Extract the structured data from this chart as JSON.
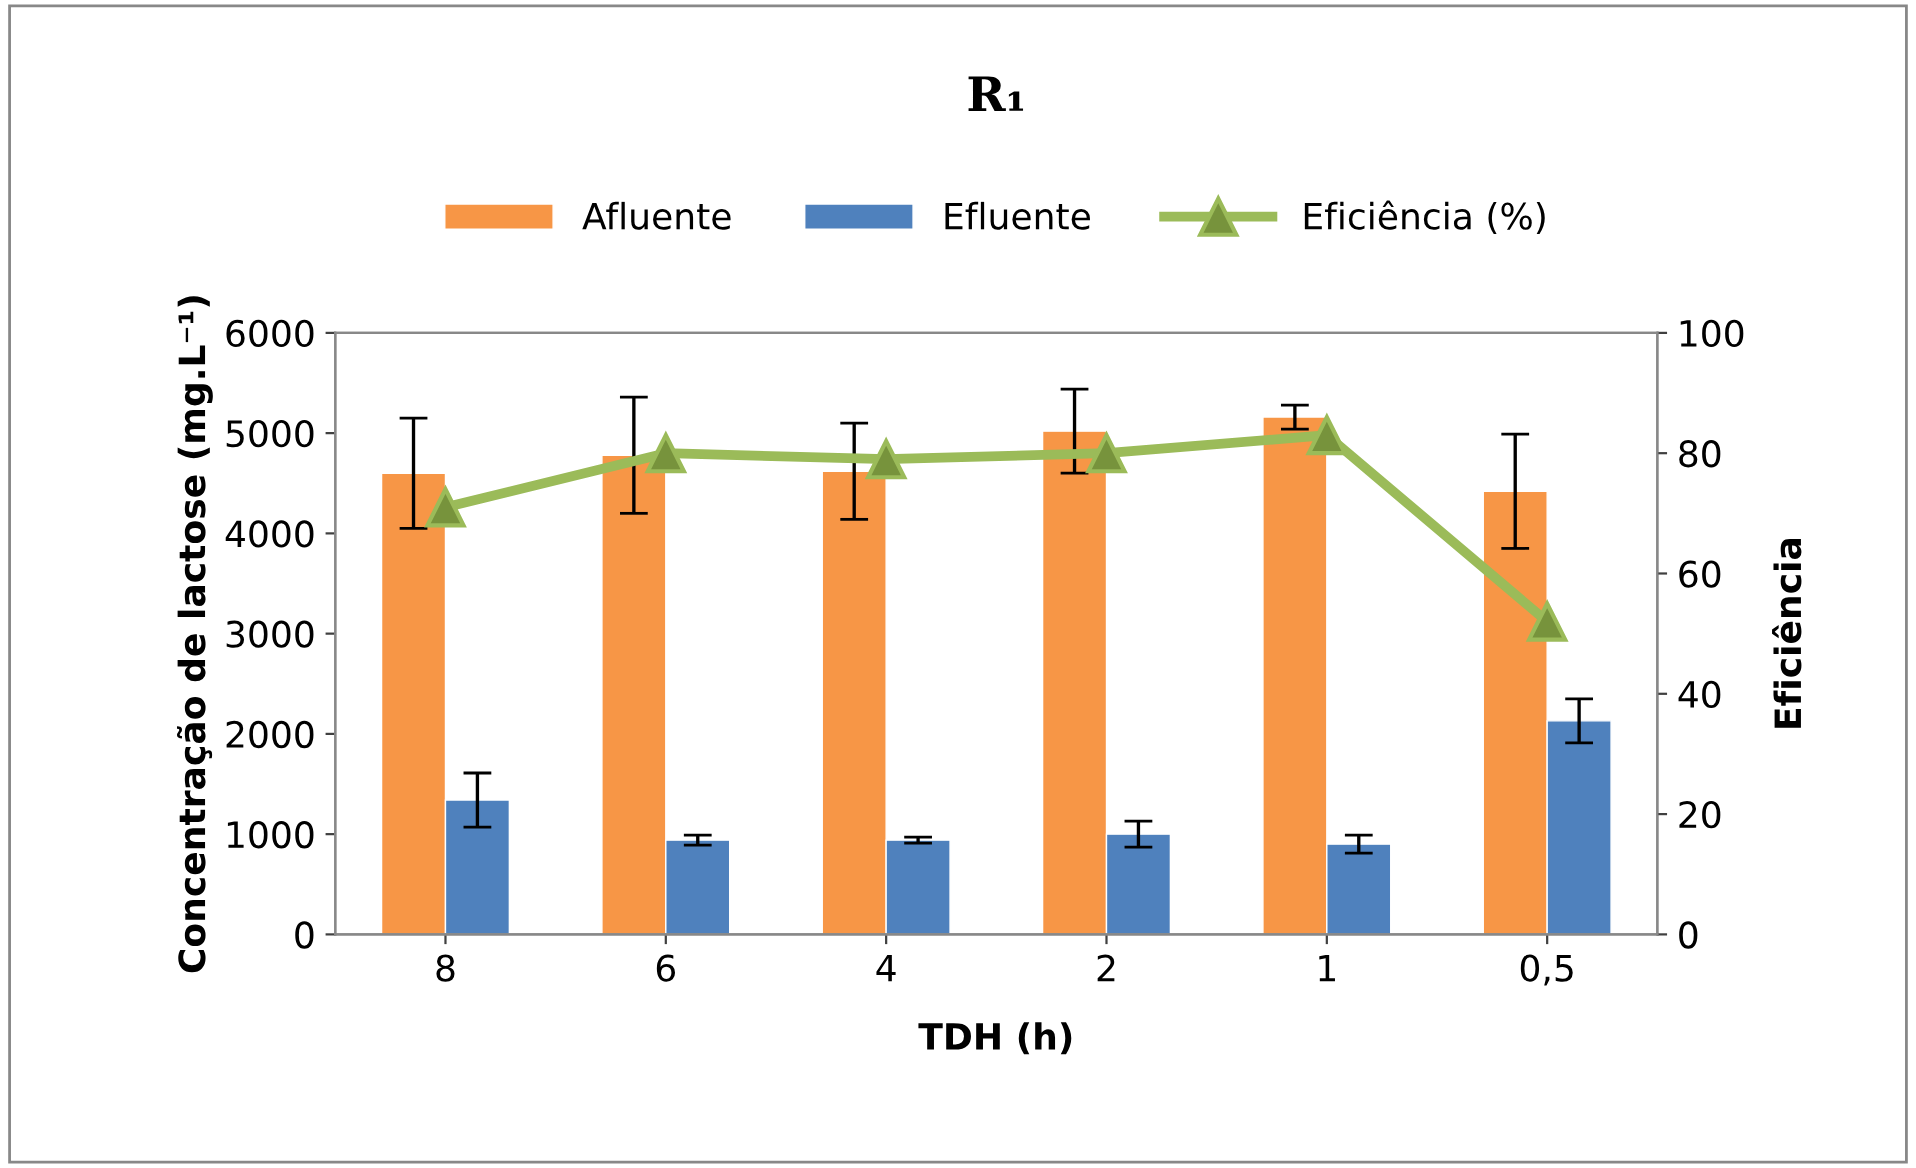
{
  "chart_data": {
    "type": "bar",
    "title": "R₁",
    "xlabel": "TDH (h)",
    "ylabel": "Concentração de lactose (mg.L⁻¹)",
    "y2label": "Eficiência",
    "categories": [
      "8",
      "6",
      "4",
      "2",
      "1",
      "0,5"
    ],
    "series": [
      {
        "name": "Afluente",
        "color": "#f79646",
        "values": [
          4600,
          4780,
          4620,
          5020,
          5160,
          4420
        ],
        "errors": [
          550,
          580,
          480,
          420,
          120,
          570
        ]
      },
      {
        "name": "Efluente",
        "color": "#4f81bd",
        "values": [
          1340,
          940,
          940,
          1000,
          900,
          2130
        ],
        "errors": [
          270,
          50,
          30,
          130,
          90,
          220
        ]
      },
      {
        "name": "Eficiência (%)",
        "type": "line",
        "axis": "y2",
        "color": "#9bbb59",
        "marker": "triangle",
        "values": [
          71,
          80,
          79,
          80,
          83,
          52
        ]
      }
    ],
    "ylim": [
      0,
      6000
    ],
    "yticks": [
      0,
      1000,
      2000,
      3000,
      4000,
      5000,
      6000
    ],
    "y2lim": [
      0,
      100
    ],
    "y2ticks": [
      0,
      20,
      40,
      60,
      80,
      100
    ],
    "grid": false,
    "legend": "top"
  }
}
